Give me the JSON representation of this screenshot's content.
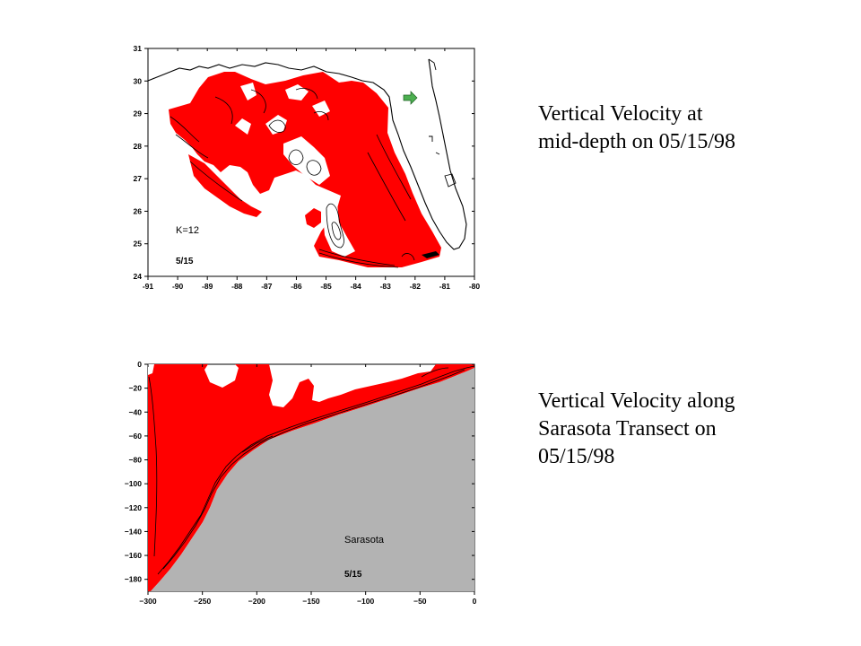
{
  "captions": {
    "top": [
      "Vertical Velocity at",
      "mid-depth on 05/15/98"
    ],
    "bottom": [
      "Vertical Velocity along",
      "Sarasota Transect on",
      "05/15/98"
    ]
  },
  "colors": {
    "positive": "#ff0000",
    "land": "#b3b3b3",
    "contour": "#000000",
    "arrow": "#4caf50"
  },
  "chart_data": [
    {
      "type": "heatmap",
      "x_ticks": [
        "-91",
        "-90",
        "-89",
        "-88",
        "-87",
        "-86",
        "-85",
        "-84",
        "-83",
        "-82",
        "-81",
        "-80"
      ],
      "y_ticks": [
        "31",
        "30",
        "29",
        "28",
        "27",
        "26",
        "25",
        "24"
      ],
      "xlim": [
        -91,
        -80
      ],
      "ylim": [
        24,
        31
      ],
      "annotations": [
        "K=12",
        "5/15"
      ]
    },
    {
      "type": "heatmap",
      "x_ticks": [
        "−300",
        "−250",
        "−200",
        "−150",
        "−100",
        "−50",
        "0"
      ],
      "y_ticks": [
        "0",
        "−20",
        "−40",
        "−60",
        "−80",
        "−100",
        "−120",
        "−140",
        "−160",
        "−180"
      ],
      "xlim": [
        -300,
        0
      ],
      "ylim": [
        -190,
        0
      ],
      "annotations": [
        "Sarasota",
        "5/15"
      ]
    }
  ]
}
